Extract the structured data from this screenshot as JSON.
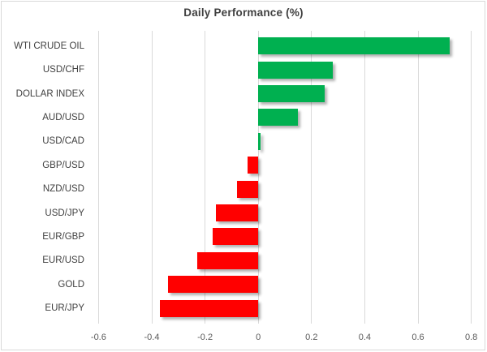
{
  "chart_data": {
    "type": "bar",
    "orientation": "horizontal",
    "title": "Daily Performance (%)",
    "categories": [
      "WTI CRUDE OIL",
      "USD/CHF",
      "DOLLAR INDEX",
      "AUD/USD",
      "USD/CAD",
      "GBP/USD",
      "NZD/USD",
      "USD/JPY",
      "EUR/GBP",
      "EUR/USD",
      "GOLD",
      "EUR/JPY"
    ],
    "values": [
      0.72,
      0.28,
      0.25,
      0.15,
      0.01,
      -0.04,
      -0.08,
      -0.16,
      -0.17,
      -0.23,
      -0.34,
      -0.37
    ],
    "xlabel": "",
    "ylabel": "",
    "xlim": [
      -0.65,
      0.85
    ],
    "x_ticks": [
      -0.6,
      -0.4,
      -0.2,
      0,
      0.2,
      0.4,
      0.6,
      0.8
    ],
    "x_tick_labels": [
      "-0.6",
      "-0.4",
      "-0.2",
      "0",
      "0.2",
      "0.4",
      "0.6",
      "0.8"
    ],
    "grid": "vertical-gridlines",
    "legend": "none",
    "colors": {
      "positive": "#00B050",
      "negative": "#FF0000",
      "gridline": "#D9D9D9",
      "category_label": "#404040",
      "tick_label": "#595959",
      "title": "#404040",
      "background": "#FFFFFF",
      "border": "#D9D9D9"
    }
  }
}
